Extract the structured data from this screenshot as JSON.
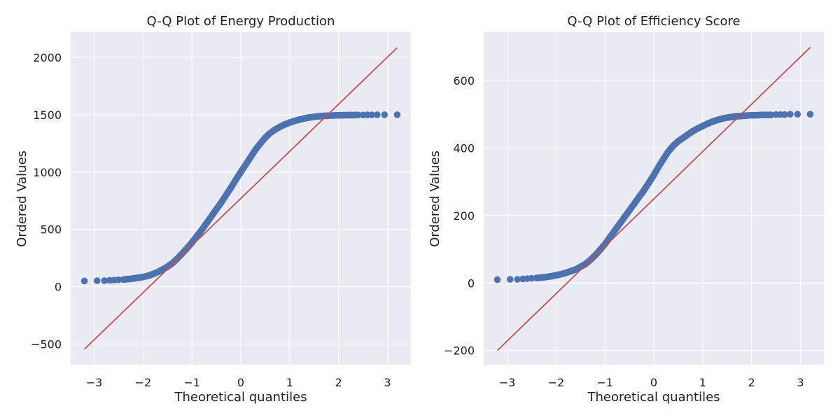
{
  "colors": {
    "panel_bg": "#eaeaf2",
    "grid": "#ffffff",
    "points": "#4c72b0",
    "reference_line": "#c44e52",
    "text": "#222222"
  },
  "chart_data": [
    {
      "type": "scatter",
      "title": "Q-Q Plot of Energy Production",
      "xlabel": "Theoretical quantiles",
      "ylabel": "Ordered Values",
      "xlim": [
        -3.48,
        3.48
      ],
      "ylim": [
        -680,
        2220
      ],
      "x_ticks": [
        -3,
        -2,
        -1,
        0,
        1,
        2,
        3
      ],
      "x_tick_labels": [
        "−3",
        "−2",
        "−1",
        "0",
        "1",
        "2",
        "3"
      ],
      "y_ticks": [
        -500,
        0,
        500,
        1000,
        1500,
        2000
      ],
      "y_tick_labels": [
        "−500",
        "0",
        "500",
        "1000",
        "1500",
        "2000"
      ],
      "grid": true,
      "reference_line": {
        "x": [
          -3.2,
          3.2
        ],
        "y": [
          -545,
          2085
        ]
      },
      "series": [
        {
          "role": "points",
          "x": [
            -3.2,
            -2.94,
            -2.79,
            -2.68,
            -2.59,
            -2.5,
            -2.4,
            -2.3,
            -2.2,
            -2.1,
            -2.0,
            -1.9,
            -1.8,
            -1.7,
            -1.6,
            -1.5,
            -1.4,
            -1.3,
            -1.2,
            -1.1,
            -1.0,
            -0.9,
            -0.8,
            -0.7,
            -0.6,
            -0.5,
            -0.4,
            -0.3,
            -0.2,
            -0.1,
            0.0,
            0.1,
            0.2,
            0.3,
            0.4,
            0.5,
            0.6,
            0.7,
            0.8,
            0.9,
            1.0,
            1.1,
            1.2,
            1.3,
            1.4,
            1.5,
            1.6,
            1.7,
            1.8,
            1.9,
            2.0,
            2.1,
            2.2,
            2.3,
            2.4,
            2.5,
            2.59,
            2.68,
            2.79,
            2.94,
            3.2
          ],
          "y": [
            50,
            52,
            53,
            56,
            58,
            60,
            63,
            67,
            72,
            78,
            85,
            95,
            110,
            128,
            150,
            175,
            205,
            245,
            290,
            335,
            385,
            440,
            495,
            555,
            615,
            675,
            735,
            800,
            865,
            935,
            1000,
            1065,
            1130,
            1195,
            1250,
            1300,
            1340,
            1370,
            1395,
            1415,
            1432,
            1446,
            1458,
            1468,
            1476,
            1482,
            1487,
            1490,
            1492,
            1494,
            1495,
            1496,
            1497,
            1497,
            1498,
            1498,
            1499,
            1499,
            1500,
            1500,
            1500
          ]
        }
      ]
    },
    {
      "type": "scatter",
      "title": "Q-Q Plot of Efficiency Score",
      "xlabel": "Theoretical quantiles",
      "ylabel": "Ordered Values",
      "xlim": [
        -3.48,
        3.48
      ],
      "ylim": [
        -242,
        743
      ],
      "x_ticks": [
        -3,
        -2,
        -1,
        0,
        1,
        2,
        3
      ],
      "x_tick_labels": [
        "−3",
        "−2",
        "−1",
        "0",
        "1",
        "2",
        "3"
      ],
      "y_ticks": [
        -200,
        0,
        200,
        400,
        600
      ],
      "y_tick_labels": [
        "−200",
        "0",
        "200",
        "400",
        "600"
      ],
      "grid": true,
      "reference_line": {
        "x": [
          -3.2,
          3.2
        ],
        "y": [
          -200,
          698
        ]
      },
      "series": [
        {
          "role": "points",
          "x": [
            -3.2,
            -2.94,
            -2.79,
            -2.68,
            -2.59,
            -2.5,
            -2.4,
            -2.3,
            -2.2,
            -2.1,
            -2.0,
            -1.9,
            -1.8,
            -1.7,
            -1.6,
            -1.5,
            -1.4,
            -1.3,
            -1.2,
            -1.1,
            -1.0,
            -0.9,
            -0.8,
            -0.7,
            -0.6,
            -0.5,
            -0.4,
            -0.3,
            -0.2,
            -0.1,
            0.0,
            0.1,
            0.2,
            0.3,
            0.4,
            0.5,
            0.6,
            0.7,
            0.8,
            0.9,
            1.0,
            1.1,
            1.2,
            1.3,
            1.4,
            1.5,
            1.6,
            1.7,
            1.8,
            1.9,
            2.0,
            2.1,
            2.2,
            2.3,
            2.4,
            2.5,
            2.59,
            2.68,
            2.79,
            2.94,
            3.2
          ],
          "y": [
            10,
            11,
            11,
            12,
            13,
            14,
            15,
            16,
            18,
            20,
            23,
            26,
            30,
            35,
            40,
            48,
            56,
            68,
            82,
            98,
            115,
            135,
            155,
            175,
            195,
            215,
            235,
            255,
            275,
            297,
            320,
            345,
            368,
            390,
            407,
            420,
            430,
            440,
            450,
            458,
            465,
            472,
            478,
            483,
            487,
            490,
            492,
            494,
            495,
            496,
            497,
            497,
            498,
            498,
            498,
            499,
            499,
            499,
            500,
            500,
            500
          ]
        }
      ]
    }
  ]
}
